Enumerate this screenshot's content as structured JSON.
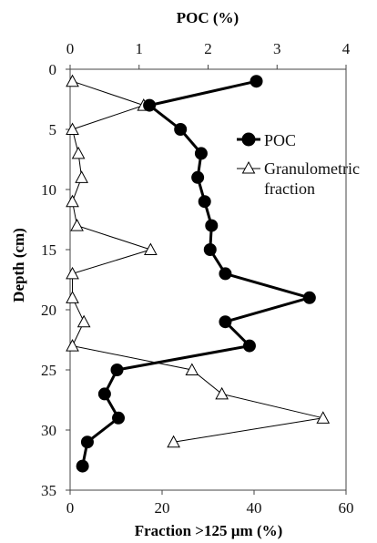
{
  "chart_data": {
    "type": "scatter",
    "top_axis": {
      "title": "POC (%)",
      "range": [
        0,
        4
      ],
      "ticks": [
        "0",
        "1",
        "2",
        "3",
        "4"
      ],
      "tick_values": [
        0,
        1,
        2,
        3,
        4
      ]
    },
    "bottom_axis": {
      "title": "Fraction >125 µm (%)",
      "range": [
        0,
        60
      ],
      "ticks": [
        "0",
        "20",
        "40",
        "60"
      ],
      "tick_values": [
        0,
        20,
        40,
        60
      ]
    },
    "left_axis": {
      "title": "Depth (cm)",
      "range": [
        0,
        35
      ],
      "inverted": true,
      "ticks": [
        "0",
        "5",
        "10",
        "15",
        "20",
        "25",
        "30",
        "35"
      ],
      "tick_values": [
        0,
        5,
        10,
        15,
        20,
        25,
        30,
        35
      ]
    },
    "grid": false,
    "legend_position": "right",
    "series": [
      {
        "name": "POC",
        "axis": "top",
        "marker": "filled-circle",
        "color": "#000000",
        "line_width": "thick",
        "points": [
          {
            "x": 2.7,
            "depth": 1
          },
          {
            "x": 1.15,
            "depth": 3
          },
          {
            "x": 1.6,
            "depth": 5
          },
          {
            "x": 1.9,
            "depth": 7
          },
          {
            "x": 1.85,
            "depth": 9
          },
          {
            "x": 1.95,
            "depth": 11
          },
          {
            "x": 2.05,
            "depth": 13
          },
          {
            "x": 2.03,
            "depth": 15
          },
          {
            "x": 2.25,
            "depth": 17
          },
          {
            "x": 3.47,
            "depth": 19
          },
          {
            "x": 2.25,
            "depth": 21
          },
          {
            "x": 2.6,
            "depth": 23
          },
          {
            "x": 0.68,
            "depth": 25
          },
          {
            "x": 0.5,
            "depth": 27
          },
          {
            "x": 0.7,
            "depth": 29
          },
          {
            "x": 0.25,
            "depth": 31
          },
          {
            "x": 0.18,
            "depth": 33
          }
        ]
      },
      {
        "name": "Granulometric fraction",
        "axis": "bottom",
        "marker": "open-triangle",
        "color": "#000000",
        "line_width": "thin",
        "points": [
          {
            "x": 0.5,
            "depth": 1
          },
          {
            "x": 16,
            "depth": 3
          },
          {
            "x": 0.5,
            "depth": 5
          },
          {
            "x": 1.8,
            "depth": 7
          },
          {
            "x": 2.5,
            "depth": 9
          },
          {
            "x": 0.5,
            "depth": 11
          },
          {
            "x": 1.5,
            "depth": 13
          },
          {
            "x": 17.5,
            "depth": 15
          },
          {
            "x": 0.5,
            "depth": 17
          },
          {
            "x": 0.5,
            "depth": 19
          },
          {
            "x": 3,
            "depth": 21
          },
          {
            "x": 0.5,
            "depth": 23
          },
          {
            "x": 26.5,
            "depth": 25
          },
          {
            "x": 33,
            "depth": 27
          },
          {
            "x": 55,
            "depth": 29
          },
          {
            "x": 22.5,
            "depth": 31
          }
        ]
      }
    ],
    "legend": [
      {
        "label": "POC",
        "series": 0
      },
      {
        "label_lines": [
          "Granulometric",
          "fraction"
        ],
        "series": 1
      }
    ]
  }
}
